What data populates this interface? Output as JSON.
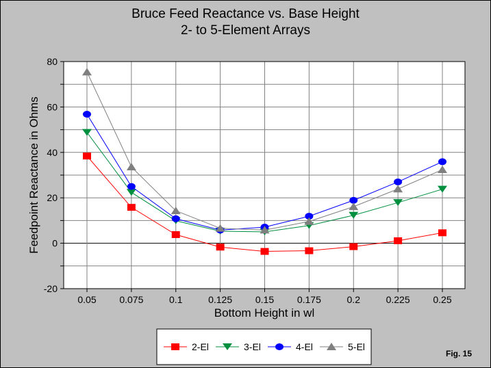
{
  "chart_data": {
    "type": "line",
    "title": "Bruce Feed Reactance vs. Base Height",
    "subtitle": "2- to 5-Element Arrays",
    "xlabel": "Bottom Height in wl",
    "ylabel": "Feedpoint Reactance in Ohms",
    "x": [
      "0.05",
      "0.075",
      "0.1",
      "0.125",
      "0.15",
      "0.175",
      "0.2",
      "0.225",
      "0.25"
    ],
    "yticks": [
      "80",
      "60",
      "40",
      "20",
      "0",
      "-20"
    ],
    "ylim": [
      -20,
      80
    ],
    "grid": true,
    "legend": "bottom",
    "series": [
      {
        "name": "2-El",
        "color": "#ff0000",
        "marker": "square",
        "values": [
          38.4,
          15.8,
          3.8,
          -1.7,
          -3.6,
          -3.3,
          -1.5,
          1.1,
          4.6
        ]
      },
      {
        "name": "3-El",
        "color": "#008f3f",
        "marker": "triangle-down",
        "values": [
          48.8,
          22.4,
          9.9,
          5.3,
          5.0,
          7.8,
          12.3,
          17.9,
          23.8
        ]
      },
      {
        "name": "4-El",
        "color": "#0000ff",
        "marker": "circle",
        "values": [
          56.8,
          25.0,
          10.8,
          5.8,
          7.1,
          11.9,
          18.9,
          27.0,
          35.9
        ]
      },
      {
        "name": "5-El",
        "color": "#808080",
        "marker": "triangle-up",
        "values": [
          75.4,
          33.6,
          14.3,
          6.6,
          5.8,
          9.6,
          16.1,
          23.9,
          32.4
        ]
      }
    ]
  },
  "figure_label": "Fig. 15"
}
